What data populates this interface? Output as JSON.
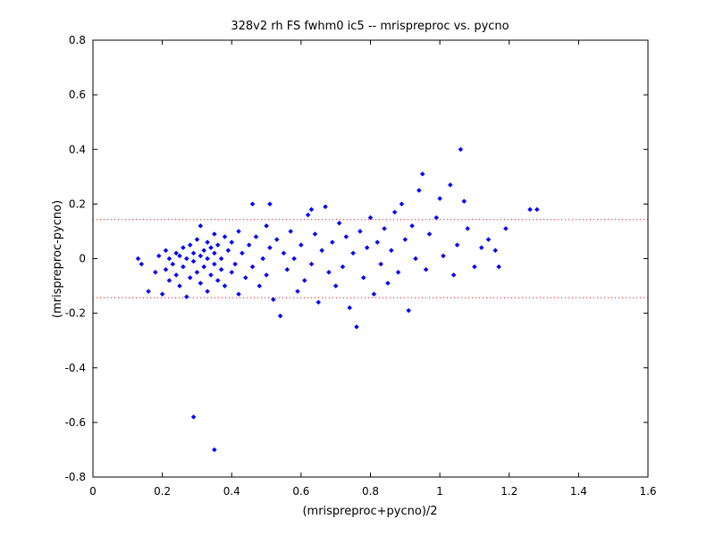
{
  "chart_data": {
    "type": "scatter",
    "title": "328v2 rh FS fwhm0 ic5 -- mrispreproc vs. pycno",
    "xlabel": "(mrispreproc+pycno)/2",
    "ylabel": "(mrispreproc-pycno)",
    "xlim": [
      0,
      1.6
    ],
    "ylim": [
      -0.8,
      0.8
    ],
    "xticks": [
      0,
      0.2,
      0.4,
      0.6,
      0.8,
      1,
      1.2,
      1.4,
      1.6
    ],
    "xtick_labels": [
      "0",
      "0.2",
      "0.4",
      "0.6",
      "0.8",
      "1",
      "1.2",
      "1.4",
      "1.6"
    ],
    "yticks": [
      -0.8,
      -0.6,
      -0.4,
      -0.2,
      0,
      0.2,
      0.4,
      0.6,
      0.8
    ],
    "ytick_labels": [
      "-0.8",
      "-0.6",
      "-0.4",
      "-0.2",
      "0",
      "0.2",
      "0.4",
      "0.6",
      "0.8"
    ],
    "grid": false,
    "marker": "diamond",
    "marker_color": "#0000ff",
    "reference_lines": [
      {
        "y": 0.143,
        "style": "dotted",
        "color": "#ff0000"
      },
      {
        "y": -0.143,
        "style": "dotted",
        "color": "#ff0000"
      }
    ],
    "points": [
      [
        0.13,
        0.0
      ],
      [
        0.14,
        -0.02
      ],
      [
        0.16,
        -0.12
      ],
      [
        0.18,
        -0.05
      ],
      [
        0.19,
        0.01
      ],
      [
        0.2,
        -0.13
      ],
      [
        0.21,
        -0.04
      ],
      [
        0.21,
        0.03
      ],
      [
        0.22,
        -0.08
      ],
      [
        0.22,
        0.0
      ],
      [
        0.23,
        -0.02
      ],
      [
        0.24,
        0.02
      ],
      [
        0.24,
        -0.06
      ],
      [
        0.25,
        0.01
      ],
      [
        0.25,
        -0.1
      ],
      [
        0.26,
        0.04
      ],
      [
        0.26,
        -0.03
      ],
      [
        0.27,
        0.0
      ],
      [
        0.27,
        -0.14
      ],
      [
        0.28,
        0.05
      ],
      [
        0.28,
        -0.07
      ],
      [
        0.29,
        0.02
      ],
      [
        0.29,
        -0.01
      ],
      [
        0.3,
        0.07
      ],
      [
        0.3,
        -0.05
      ],
      [
        0.31,
        0.01
      ],
      [
        0.31,
        -0.09
      ],
      [
        0.31,
        0.12
      ],
      [
        0.32,
        0.03
      ],
      [
        0.32,
        -0.03
      ],
      [
        0.33,
        0.06
      ],
      [
        0.33,
        -0.12
      ],
      [
        0.33,
        0.0
      ],
      [
        0.34,
        0.04
      ],
      [
        0.34,
        -0.06
      ],
      [
        0.35,
        0.09
      ],
      [
        0.35,
        -0.02
      ],
      [
        0.35,
        0.02
      ],
      [
        0.36,
        -0.08
      ],
      [
        0.36,
        0.05
      ],
      [
        0.37,
        0.0
      ],
      [
        0.37,
        -0.04
      ],
      [
        0.38,
        0.08
      ],
      [
        0.38,
        -0.1
      ],
      [
        0.39,
        0.03
      ],
      [
        0.4,
        -0.05
      ],
      [
        0.4,
        0.06
      ],
      [
        0.41,
        -0.02
      ],
      [
        0.42,
        0.1
      ],
      [
        0.42,
        -0.13
      ],
      [
        0.43,
        0.02
      ],
      [
        0.44,
        -0.07
      ],
      [
        0.45,
        0.05
      ],
      [
        0.46,
        0.2
      ],
      [
        0.46,
        -0.03
      ],
      [
        0.47,
        0.08
      ],
      [
        0.48,
        -0.1
      ],
      [
        0.49,
        0.0
      ],
      [
        0.5,
        0.12
      ],
      [
        0.5,
        -0.06
      ],
      [
        0.51,
        0.04
      ],
      [
        0.52,
        -0.15
      ],
      [
        0.53,
        0.07
      ],
      [
        0.54,
        -0.21
      ],
      [
        0.55,
        0.02
      ],
      [
        0.56,
        -0.04
      ],
      [
        0.57,
        0.1
      ],
      [
        0.58,
        0.0
      ],
      [
        0.59,
        -0.12
      ],
      [
        0.6,
        0.05
      ],
      [
        0.61,
        -0.08
      ],
      [
        0.62,
        0.16
      ],
      [
        0.63,
        -0.02
      ],
      [
        0.64,
        0.09
      ],
      [
        0.65,
        -0.16
      ],
      [
        0.66,
        0.03
      ],
      [
        0.67,
        0.19
      ],
      [
        0.68,
        -0.05
      ],
      [
        0.69,
        0.06
      ],
      [
        0.7,
        -0.1
      ],
      [
        0.71,
        0.13
      ],
      [
        0.72,
        -0.03
      ],
      [
        0.73,
        0.08
      ],
      [
        0.74,
        -0.18
      ],
      [
        0.75,
        0.02
      ],
      [
        0.76,
        -0.25
      ],
      [
        0.77,
        0.1
      ],
      [
        0.78,
        -0.07
      ],
      [
        0.79,
        0.04
      ],
      [
        0.8,
        0.15
      ],
      [
        0.81,
        -0.13
      ],
      [
        0.82,
        0.06
      ],
      [
        0.83,
        -0.02
      ],
      [
        0.84,
        0.11
      ],
      [
        0.85,
        -0.09
      ],
      [
        0.86,
        0.03
      ],
      [
        0.87,
        0.17
      ],
      [
        0.88,
        -0.05
      ],
      [
        0.89,
        0.2
      ],
      [
        0.9,
        0.07
      ],
      [
        0.91,
        -0.19
      ],
      [
        0.92,
        0.12
      ],
      [
        0.93,
        0.0
      ],
      [
        0.94,
        0.25
      ],
      [
        0.95,
        0.31
      ],
      [
        0.96,
        -0.04
      ],
      [
        0.97,
        0.09
      ],
      [
        0.99,
        0.15
      ],
      [
        1.0,
        0.22
      ],
      [
        1.01,
        0.01
      ],
      [
        1.03,
        0.27
      ],
      [
        1.04,
        -0.06
      ],
      [
        1.05,
        0.05
      ],
      [
        1.06,
        0.4
      ],
      [
        1.07,
        0.21
      ],
      [
        1.08,
        0.11
      ],
      [
        1.1,
        -0.03
      ],
      [
        1.12,
        0.04
      ],
      [
        1.14,
        0.07
      ],
      [
        1.16,
        0.03
      ],
      [
        1.17,
        -0.03
      ],
      [
        1.19,
        0.11
      ],
      [
        1.26,
        0.18
      ],
      [
        1.28,
        0.18
      ],
      [
        0.29,
        -0.58
      ],
      [
        0.35,
        -0.7
      ],
      [
        0.51,
        0.2
      ],
      [
        0.63,
        0.18
      ]
    ]
  }
}
